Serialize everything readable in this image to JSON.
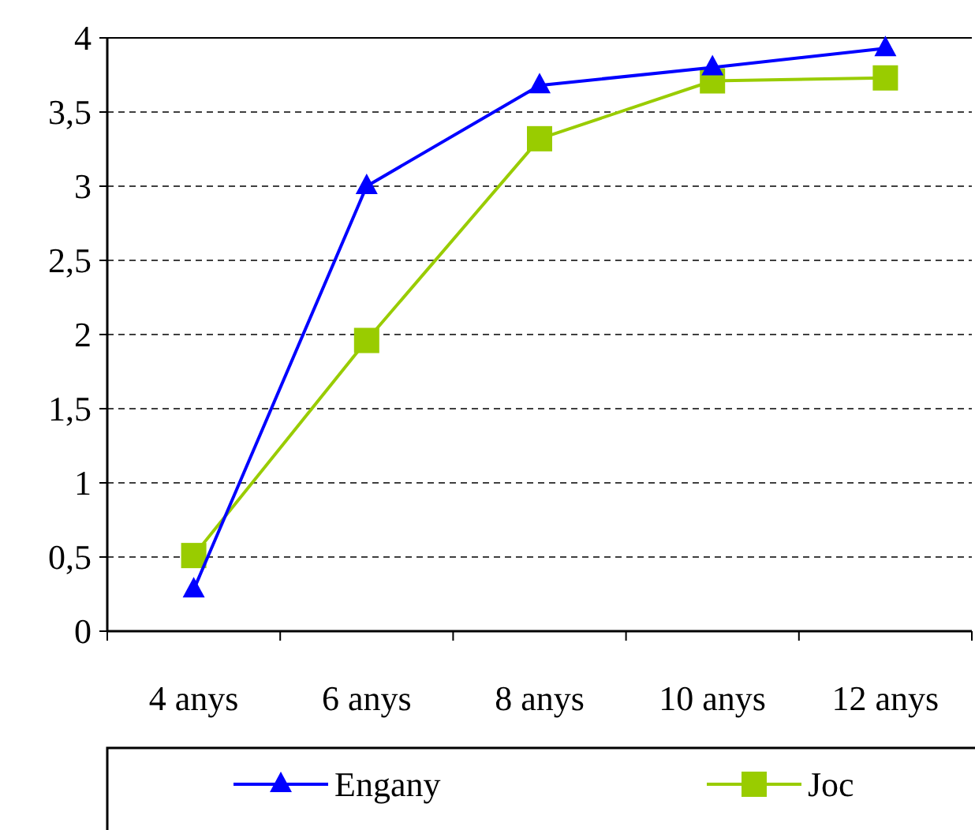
{
  "chart_data": {
    "type": "line",
    "categories": [
      "4 anys",
      "6 anys",
      "8 anys",
      "10 anys",
      "12 anys"
    ],
    "series": [
      {
        "name": "Engany",
        "color": "#0000ff",
        "values": [
          0.28,
          3.0,
          3.68,
          3.8,
          3.93
        ],
        "marker": "triangle"
      },
      {
        "name": "Joc",
        "color": "#99cc00",
        "values": [
          0.51,
          1.96,
          3.32,
          3.71,
          3.73
        ],
        "marker": "square"
      }
    ],
    "ylim": [
      0,
      4
    ],
    "yticks": [
      0,
      {
        "value": 0.5,
        "label": "0,5"
      },
      1,
      {
        "value": 1.5,
        "label": "1,5"
      },
      2,
      {
        "value": 2.5,
        "label": "2,5"
      },
      3,
      {
        "value": 3.5,
        "label": "3,5"
      },
      4
    ],
    "grid": "y",
    "legend": "bottom",
    "line_style": "solid"
  }
}
